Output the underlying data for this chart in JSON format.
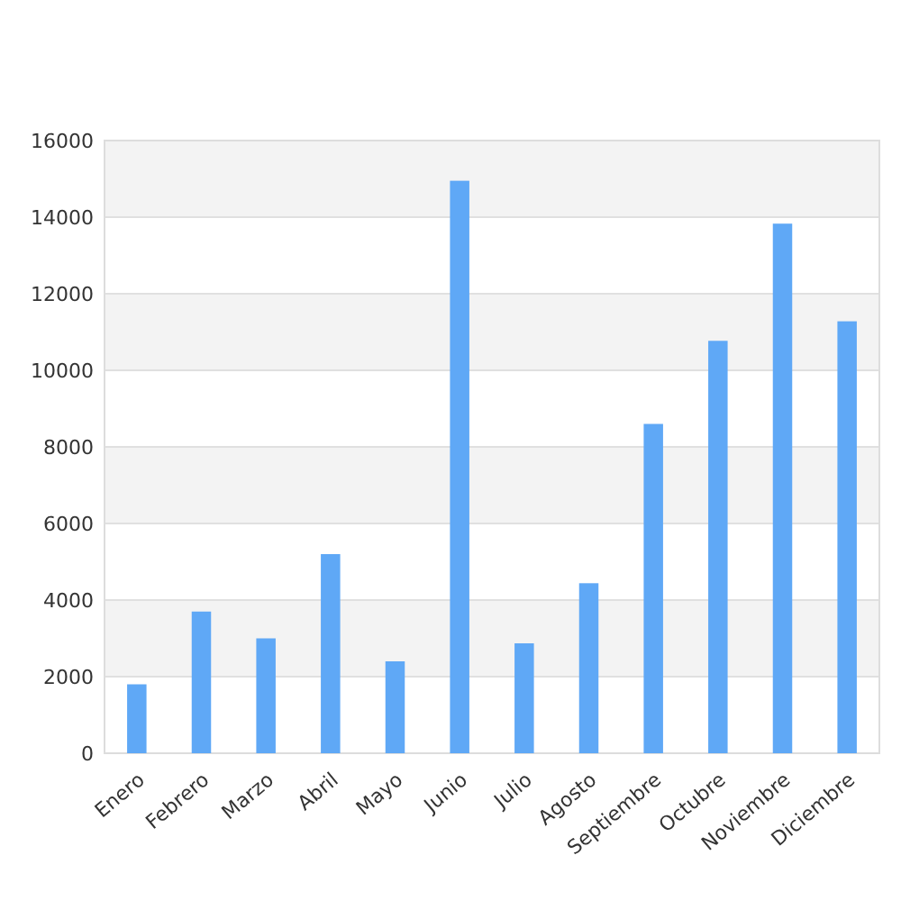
{
  "chart_data": {
    "type": "bar",
    "categories": [
      "Enero",
      "Febrero",
      "Marzo",
      "Abril",
      "Mayo",
      "Junio",
      "Julio",
      "Agosto",
      "Septiembre",
      "Octubre",
      "Noviembre",
      "Diciembre"
    ],
    "series": [
      {
        "color": "#5fa8f6",
        "values": [
          1800,
          3700,
          3000,
          5200,
          2400,
          14950,
          2870,
          4440,
          8600,
          10770,
          13830,
          11280
        ]
      }
    ],
    "ylim": [
      0,
      16000
    ],
    "yticks": [
      0,
      2000,
      4000,
      6000,
      8000,
      10000,
      12000,
      14000,
      16000
    ],
    "grid": "y"
  }
}
